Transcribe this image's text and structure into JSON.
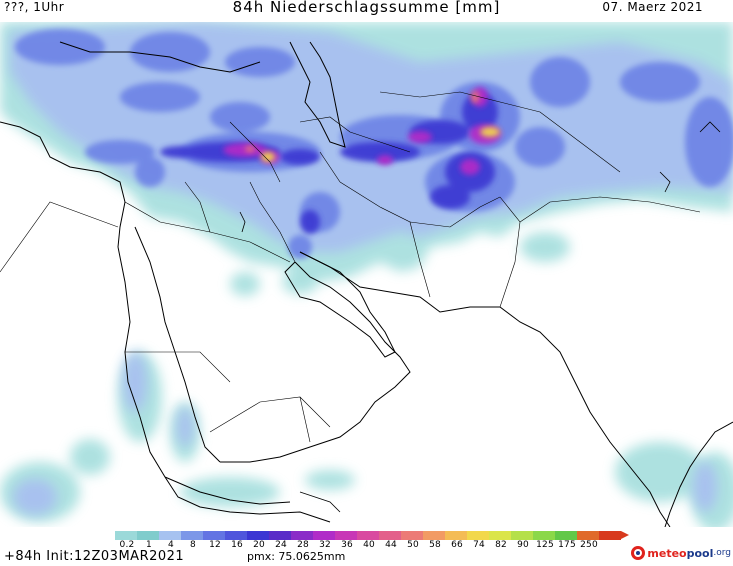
{
  "header": {
    "left": "???, 1Uhr",
    "title": "84h Niederschlagssumme [mm]",
    "date": "07. Maerz 2021"
  },
  "legend": {
    "ticks": [
      "0.2",
      "1",
      "4",
      "8",
      "12",
      "16",
      "20",
      "24",
      "28",
      "32",
      "36",
      "40",
      "44",
      "50",
      "58",
      "66",
      "74",
      "82",
      "90",
      "125",
      "175",
      "250"
    ],
    "colors": [
      "#9bd9d9",
      "#80cccc",
      "#a6c2f0",
      "#7c97e8",
      "#6374e3",
      "#4f55dc",
      "#3b36d3",
      "#5a2cc8",
      "#8a2cc8",
      "#b02cc8",
      "#c837b6",
      "#d94aa0",
      "#e3608a",
      "#ec7b76",
      "#f29b64",
      "#f4bc55",
      "#f2d84c",
      "#dbe54a",
      "#b5e04a",
      "#8bd849",
      "#62c848",
      "#e06a2a",
      "#d83a1e"
    ]
  },
  "footer": {
    "init": "+84h Init:12Z03MAR2021",
    "pmx": "pmx: 75.0625mm",
    "logo_a": "meteo",
    "logo_b": "pool",
    "logo_c": ".org"
  },
  "map": {
    "region": "Middle East / Arabian Peninsula / South Asia",
    "colors": {
      "land_bg": "#ffffff",
      "border_line": "#000000",
      "precip_light": "#a9e0df",
      "precip_low": "#a8c0f0",
      "precip_mid": "#6f86e6",
      "precip_high": "#3c3bd3",
      "precip_very_high": "#b02cc8",
      "precip_extreme": "#f2d84c"
    }
  }
}
